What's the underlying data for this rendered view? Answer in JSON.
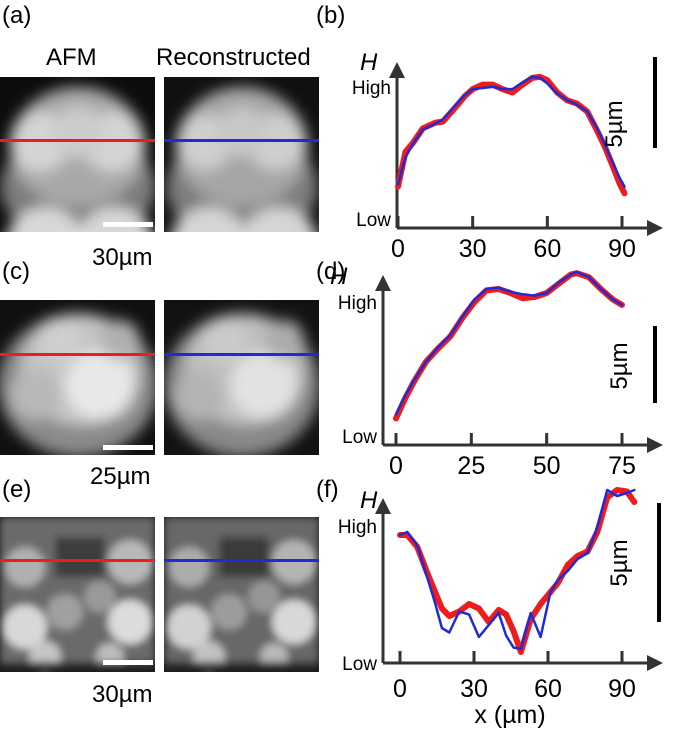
{
  "panel_labels": [
    "(a)",
    "(b)",
    "(c)",
    "(d)",
    "(e)",
    "(f)"
  ],
  "column_headers": {
    "afm": "AFM",
    "reconstructed": "Reconstructed"
  },
  "scale_labels": [
    "30µm",
    "25µm",
    "30µm"
  ],
  "colors": {
    "afm_line": "#ee1c1c",
    "reconstructed_line": "#1f2bd6"
  },
  "chart_data": [
    {
      "type": "line",
      "panel": "(b)",
      "ylabel": "H",
      "y_tick_labels": [
        "High",
        "Low"
      ],
      "scale_bar_label": "5µm",
      "xlim": [
        0,
        100
      ],
      "x_ticks": [
        0,
        30,
        60,
        90
      ],
      "series": [
        {
          "color": "#ee1c1c",
          "x": [
            0,
            3,
            6,
            10,
            15,
            18,
            22,
            27,
            30,
            34,
            38,
            42,
            46,
            50,
            54,
            57,
            60,
            64,
            68,
            72,
            76,
            80,
            83,
            86,
            89,
            91
          ],
          "y": [
            0.12,
            0.43,
            0.51,
            0.64,
            0.69,
            0.7,
            0.8,
            0.93,
            0.99,
            1.03,
            1.03,
            0.99,
            0.96,
            1.03,
            1.09,
            1.1,
            1.07,
            0.96,
            0.89,
            0.86,
            0.79,
            0.62,
            0.48,
            0.32,
            0.15,
            0.06
          ]
        },
        {
          "color": "#1f2bd6",
          "x": [
            0,
            3,
            6,
            10,
            15,
            18,
            22,
            27,
            30,
            34,
            38,
            42,
            46,
            50,
            54,
            57,
            60,
            64,
            68,
            72,
            76,
            80,
            83,
            86,
            89,
            91
          ],
          "y": [
            0.14,
            0.38,
            0.5,
            0.63,
            0.68,
            0.72,
            0.82,
            0.94,
            0.99,
            1.0,
            1.01,
            0.99,
            0.99,
            1.05,
            1.1,
            1.09,
            1.04,
            0.95,
            0.89,
            0.85,
            0.79,
            0.64,
            0.5,
            0.35,
            0.2,
            0.12
          ]
        }
      ]
    },
    {
      "type": "line",
      "panel": "(d)",
      "ylabel": "H",
      "y_tick_labels": [
        "High",
        "Low"
      ],
      "scale_bar_label": "5µm",
      "xlim": [
        0,
        85
      ],
      "x_ticks": [
        0,
        25,
        50,
        75
      ],
      "series": [
        {
          "color": "#ee1c1c",
          "x": [
            0,
            3,
            6,
            10,
            14,
            18,
            22,
            26,
            30,
            34,
            38,
            42,
            46,
            50,
            54,
            58,
            60,
            64,
            68,
            72,
            75
          ],
          "y": [
            0.05,
            0.2,
            0.33,
            0.48,
            0.58,
            0.67,
            0.81,
            0.93,
            1.02,
            1.03,
            1.0,
            0.96,
            0.97,
            1.0,
            1.07,
            1.14,
            1.15,
            1.12,
            1.03,
            0.95,
            0.91
          ]
        },
        {
          "color": "#1f2bd6",
          "x": [
            0,
            3,
            6,
            10,
            14,
            18,
            22,
            26,
            30,
            34,
            38,
            42,
            46,
            50,
            54,
            58,
            60,
            64,
            68,
            72,
            75
          ],
          "y": [
            0.08,
            0.22,
            0.34,
            0.48,
            0.59,
            0.68,
            0.82,
            0.95,
            1.03,
            1.04,
            1.01,
            0.99,
            0.98,
            1.0,
            1.08,
            1.14,
            1.16,
            1.12,
            1.03,
            0.95,
            0.91
          ]
        }
      ]
    },
    {
      "type": "line",
      "panel": "(f)",
      "ylabel": "H",
      "xlabel": "x (µm)",
      "y_tick_labels": [
        "High",
        "Low"
      ],
      "scale_bar_label": "5µm",
      "xlim": [
        0,
        100
      ],
      "x_ticks": [
        0,
        30,
        60,
        90
      ],
      "series": [
        {
          "color": "#ee1c1c",
          "x": [
            0,
            3,
            7,
            11,
            14,
            17,
            20,
            24,
            28,
            32,
            36,
            40,
            43,
            46,
            49,
            53,
            57,
            61,
            64,
            68,
            72,
            76,
            80,
            84,
            88,
            92,
            95
          ],
          "y": [
            0.8,
            0.8,
            0.72,
            0.55,
            0.43,
            0.31,
            0.26,
            0.29,
            0.34,
            0.31,
            0.22,
            0.3,
            0.27,
            0.16,
            0.02,
            0.24,
            0.34,
            0.42,
            0.48,
            0.6,
            0.66,
            0.69,
            0.82,
            1.05,
            1.1,
            1.09,
            1.02
          ]
        },
        {
          "color": "#1f2bd6",
          "x": [
            0,
            3,
            7,
            11,
            14,
            17,
            20,
            24,
            28,
            32,
            36,
            40,
            43,
            46,
            49,
            53,
            57,
            61,
            64,
            68,
            72,
            76,
            80,
            84,
            88,
            92,
            95
          ],
          "y": [
            0.8,
            0.82,
            0.73,
            0.52,
            0.36,
            0.18,
            0.15,
            0.29,
            0.27,
            0.12,
            0.2,
            0.28,
            0.13,
            0.05,
            0.04,
            0.28,
            0.12,
            0.42,
            0.5,
            0.56,
            0.64,
            0.68,
            0.85,
            1.1,
            1.06,
            1.08,
            1.1
          ]
        }
      ]
    }
  ]
}
